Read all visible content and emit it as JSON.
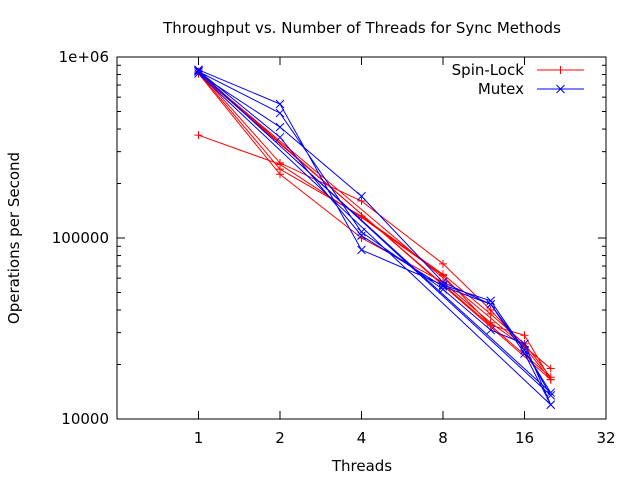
{
  "chart_data": {
    "type": "line",
    "title": "Throughput vs. Number of Threads for Sync Methods",
    "xlabel": "Threads",
    "ylabel": "Operations per Second",
    "x_scale": "log2",
    "y_scale": "log10",
    "xlim": [
      0.5,
      32
    ],
    "ylim": [
      10000,
      1000000
    ],
    "x_ticks": [
      1,
      2,
      4,
      8,
      16,
      32
    ],
    "x_tick_labels": [
      "1",
      "2",
      "4",
      "8",
      "16",
      "32"
    ],
    "y_ticks": [
      10000,
      100000,
      1000000
    ],
    "y_tick_labels": [
      "10000",
      "100000",
      "1e+06"
    ],
    "grid": false,
    "legend_position": "top-right",
    "series": [
      {
        "name": "Spin-Lock",
        "color": "#ff0000",
        "marker": "plus",
        "x": [
          1,
          2,
          4,
          8,
          12,
          16,
          20,
          1,
          2,
          4,
          8,
          12,
          16,
          20,
          1,
          2,
          4,
          8,
          12,
          16,
          20,
          1,
          2,
          4,
          8,
          12,
          16,
          20
        ],
        "y": [
          370000,
          255000,
          130000,
          62000,
          33000,
          29000,
          16500,
          830000,
          260000,
          160000,
          72000,
          40000,
          25000,
          19000,
          820000,
          240000,
          132000,
          63000,
          38000,
          26000,
          17000,
          810000,
          225000,
          100000,
          57000,
          34000,
          25000,
          16500
        ]
      },
      {
        "name": "Mutex",
        "color": "#0000ff",
        "marker": "cross",
        "x": [
          1,
          2,
          4,
          8,
          12,
          16,
          20,
          1,
          2,
          4,
          8,
          12,
          16,
          20,
          1,
          2,
          4,
          8,
          12,
          16,
          20,
          1,
          2,
          4,
          8,
          12,
          16,
          20
        ],
        "y": [
          850000,
          550000,
          86000,
          55000,
          45000,
          24000,
          14000,
          830000,
          490000,
          108000,
          52000,
          31000,
          26000,
          12000,
          810000,
          410000,
          170000,
          57000,
          43000,
          24000,
          13500,
          840000,
          360000,
          103000,
          54000,
          43000,
          23000,
          12000
        ]
      }
    ]
  }
}
